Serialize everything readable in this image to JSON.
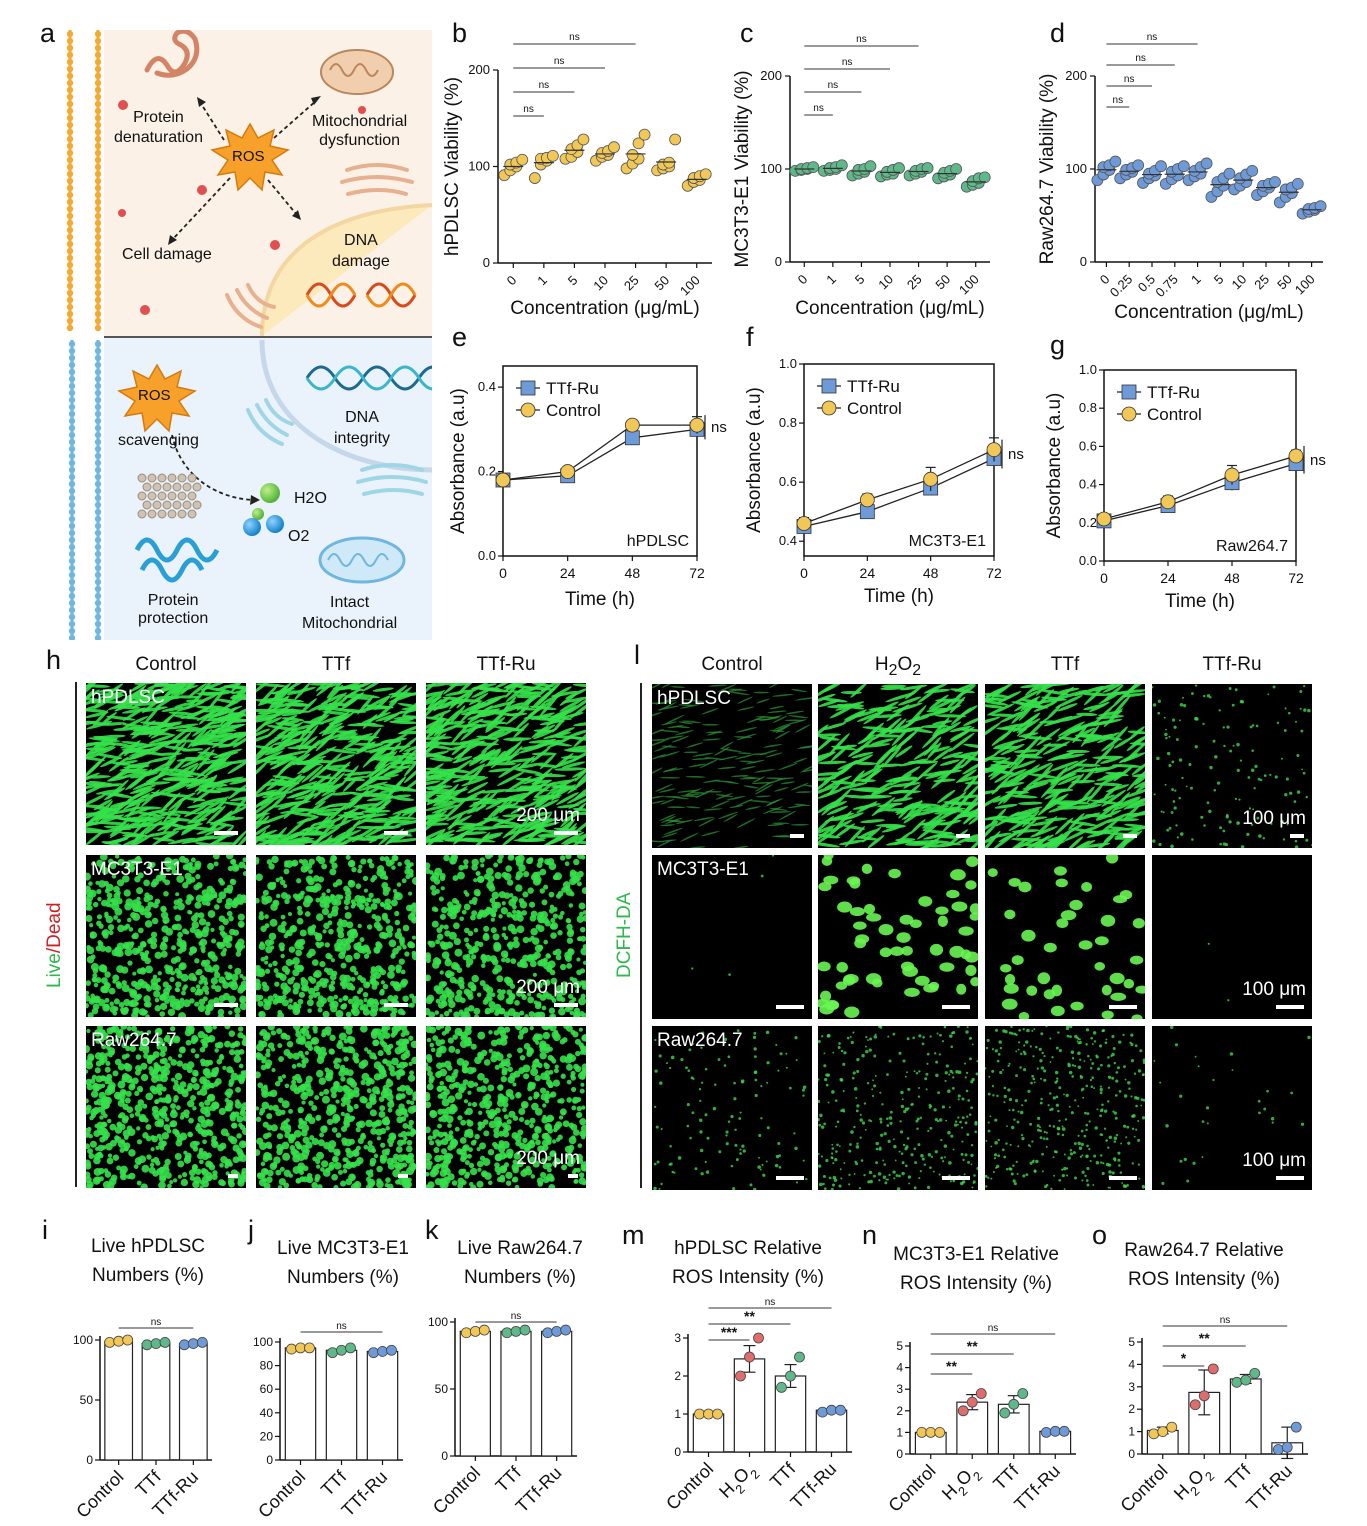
{
  "panel_letters": [
    "a",
    "b",
    "c",
    "d",
    "e",
    "f",
    "g",
    "h",
    "l",
    "i",
    "j",
    "k",
    "m",
    "n",
    "o"
  ],
  "schematic": {
    "top": {
      "ros": "ROS",
      "protein": "Protein\ndenaturation",
      "mito": "Mitochondrial\ndysfunction",
      "cell": "Cell damage",
      "dna": "DNA\ndamage"
    },
    "bottom": {
      "ros": "ROS",
      "scavenging": "scavenging",
      "h2o": "H2O",
      "o2": "O2",
      "dna": "DNA\nintegrity",
      "protein": "Protein\nprotection",
      "mito": "Intact\nMitochondrial"
    }
  },
  "chart_data": [
    {
      "id": "b",
      "type": "scatter",
      "xlabel": "Concentration (μg/mL)",
      "ylabel": "hPDLSC Viability (%)",
      "categories": [
        "0",
        "1",
        "5",
        "10",
        "25",
        "50",
        "100"
      ],
      "ylim": [
        0,
        200
      ],
      "yticks": [
        0,
        100,
        200
      ],
      "color": "#f1c858",
      "points": [
        [
          91,
          96,
          100,
          102,
          104,
          107
        ],
        [
          88,
          102,
          106,
          108,
          109,
          111
        ],
        [
          108,
          110,
          115,
          118,
          122,
          128
        ],
        [
          106,
          110,
          112,
          114,
          116,
          120
        ],
        [
          98,
          103,
          108,
          112,
          124,
          133
        ],
        [
          96,
          98,
          100,
          102,
          104,
          128
        ],
        [
          80,
          84,
          86,
          88,
          90,
          92
        ]
      ],
      "sig": [
        {
          "from": 0,
          "to": 1,
          "label": "ns"
        },
        {
          "from": 0,
          "to": 2,
          "label": "ns"
        },
        {
          "from": 0,
          "to": 3,
          "label": "ns"
        },
        {
          "from": 0,
          "to": 4,
          "label": "ns"
        }
      ]
    },
    {
      "id": "c",
      "type": "scatter",
      "xlabel": "Concentration (μg/mL)",
      "ylabel": "MC3T3-E1 Viability (%)",
      "categories": [
        "0",
        "1",
        "5",
        "10",
        "25",
        "50",
        "100"
      ],
      "ylim": [
        0,
        200
      ],
      "yticks": [
        0,
        100,
        200
      ],
      "color": "#5fb88a",
      "points": [
        [
          98,
          99,
          100,
          100,
          101,
          102
        ],
        [
          98,
          99,
          100,
          101,
          102,
          104
        ],
        [
          93,
          95,
          97,
          99,
          100,
          103
        ],
        [
          92,
          94,
          95,
          97,
          99,
          101
        ],
        [
          93,
          95,
          97,
          98,
          100,
          101
        ],
        [
          90,
          92,
          94,
          96,
          98,
          100
        ],
        [
          81,
          83,
          85,
          87,
          90,
          91
        ]
      ],
      "sig": [
        {
          "from": 0,
          "to": 1,
          "label": "ns"
        },
        {
          "from": 0,
          "to": 2,
          "label": "ns"
        },
        {
          "from": 0,
          "to": 3,
          "label": "ns"
        },
        {
          "from": 0,
          "to": 4,
          "label": "ns"
        }
      ]
    },
    {
      "id": "d",
      "type": "scatter",
      "xlabel": "Concentration (μg/mL)",
      "ylabel": "Raw264.7 Viability (%)",
      "categories": [
        "0",
        "0.25",
        "0.5",
        "0.75",
        "1",
        "5",
        "10",
        "25",
        "50",
        "100"
      ],
      "ylim": [
        0,
        200
      ],
      "yticks": [
        0,
        100,
        200
      ],
      "color": "#6e9ad8",
      "points": [
        [
          88,
          94,
          99,
          102,
          104,
          108
        ],
        [
          90,
          94,
          97,
          99,
          101,
          104
        ],
        [
          85,
          90,
          93,
          95,
          98,
          103
        ],
        [
          84,
          89,
          93,
          97,
          100,
          103
        ],
        [
          88,
          92,
          95,
          98,
          102,
          106
        ],
        [
          70,
          76,
          82,
          86,
          90,
          95
        ],
        [
          78,
          82,
          86,
          90,
          94,
          98
        ],
        [
          72,
          76,
          80,
          82,
          84,
          86
        ],
        [
          64,
          70,
          74,
          78,
          80,
          84
        ],
        [
          52,
          54,
          56,
          57,
          58,
          60
        ]
      ],
      "sig": [
        {
          "from": 0,
          "to": 1,
          "label": "ns"
        },
        {
          "from": 0,
          "to": 2,
          "label": "ns"
        },
        {
          "from": 0,
          "to": 3,
          "label": "ns"
        },
        {
          "from": 0,
          "to": 4,
          "label": "ns"
        }
      ]
    },
    {
      "id": "e",
      "type": "line",
      "xlabel": "Time (h)",
      "ylabel": "Absorbance (a.u)",
      "cell": "hPDLSC",
      "x": [
        0,
        24,
        48,
        72
      ],
      "xlim": [
        0,
        72
      ],
      "ylim": [
        0,
        0.45
      ],
      "yticks": [
        0.0,
        0.2,
        0.4
      ],
      "series": [
        {
          "name": "TTf-Ru",
          "values": [
            0.18,
            0.19,
            0.28,
            0.3
          ],
          "err": [
            0.01,
            0.01,
            0.01,
            0.02
          ]
        },
        {
          "name": "Control",
          "values": [
            0.18,
            0.2,
            0.31,
            0.31
          ],
          "err": [
            0.01,
            0.01,
            0.01,
            0.02
          ]
        }
      ],
      "sig": "ns"
    },
    {
      "id": "f",
      "type": "line",
      "xlabel": "Time (h)",
      "ylabel": "Absorbance (a.u)",
      "cell": "MC3T3-E1",
      "x": [
        0,
        24,
        48,
        72
      ],
      "xlim": [
        0,
        72
      ],
      "ylim": [
        0.35,
        1.0
      ],
      "yticks": [
        0.4,
        0.6,
        0.8,
        1.0
      ],
      "series": [
        {
          "name": "TTf-Ru",
          "values": [
            0.45,
            0.5,
            0.58,
            0.68
          ],
          "err": [
            0.02,
            0.02,
            0.02,
            0.03
          ]
        },
        {
          "name": "Control",
          "values": [
            0.46,
            0.54,
            0.61,
            0.71
          ],
          "err": [
            0.02,
            0.02,
            0.04,
            0.04
          ]
        }
      ],
      "sig": "ns"
    },
    {
      "id": "g",
      "type": "line",
      "xlabel": "Time (h)",
      "ylabel": "Absorbance (a.u)",
      "cell": "Raw264.7",
      "x": [
        0,
        24,
        48,
        72
      ],
      "xlim": [
        0,
        72
      ],
      "ylim": [
        0,
        1.0
      ],
      "yticks": [
        0.0,
        0.2,
        0.4,
        0.6,
        0.8,
        1.0
      ],
      "series": [
        {
          "name": "TTf-Ru",
          "values": [
            0.21,
            0.29,
            0.41,
            0.51
          ],
          "err": [
            0.02,
            0.03,
            0.04,
            0.03
          ]
        },
        {
          "name": "Control",
          "values": [
            0.22,
            0.31,
            0.45,
            0.55
          ],
          "err": [
            0.02,
            0.03,
            0.05,
            0.03
          ]
        }
      ],
      "sig": "ns"
    },
    {
      "id": "i",
      "type": "bar",
      "title": "Live hPDLSC\nNumbers (%)",
      "categories": [
        "Control",
        "TTf",
        "TTf-Ru"
      ],
      "values": [
        99,
        97,
        97
      ],
      "points": [
        [
          98,
          99,
          100
        ],
        [
          96,
          97,
          98
        ],
        [
          96,
          97,
          98
        ]
      ],
      "colors": [
        "#f1c858",
        "#5fb88a",
        "#6e9ad8"
      ],
      "ylim": [
        0,
        100
      ],
      "yticks": [
        0,
        50,
        100
      ],
      "sig": [
        {
          "from": 0,
          "to": 2,
          "label": "ns"
        }
      ]
    },
    {
      "id": "j",
      "type": "bar",
      "title": "Live MC3T3-E1\nNumbers (%)",
      "categories": [
        "Control",
        "TTf",
        "TTf-Ru"
      ],
      "values": [
        95,
        93,
        92
      ],
      "points": [
        [
          94,
          95,
          95
        ],
        [
          91,
          93,
          95
        ],
        [
          91,
          92,
          93
        ]
      ],
      "colors": [
        "#f1c858",
        "#5fb88a",
        "#6e9ad8"
      ],
      "ylim": [
        0,
        100
      ],
      "yticks": [
        0,
        20,
        40,
        60,
        80,
        100
      ],
      "sig": [
        {
          "from": 0,
          "to": 2,
          "label": "ns"
        }
      ]
    },
    {
      "id": "k",
      "type": "bar",
      "title": "Live Raw264.7\nNumbers (%)",
      "categories": [
        "Control",
        "TTf",
        "TTf-Ru"
      ],
      "values": [
        93,
        93,
        93
      ],
      "points": [
        [
          92,
          93,
          94
        ],
        [
          92,
          93,
          94
        ],
        [
          92,
          93,
          94
        ]
      ],
      "colors": [
        "#f1c858",
        "#5fb88a",
        "#6e9ad8"
      ],
      "ylim": [
        0,
        100
      ],
      "yticks": [
        0,
        50,
        100
      ],
      "sig": [
        {
          "from": 0,
          "to": 2,
          "label": "ns"
        }
      ]
    },
    {
      "id": "m",
      "type": "bar",
      "title": "hPDLSC  Relative\nROS Intensity (%)",
      "categories": [
        "Control",
        "H2O2",
        "TTf",
        "TTf-Ru"
      ],
      "values": [
        1.0,
        2.45,
        2.0,
        1.1
      ],
      "err": [
        0.0,
        0.35,
        0.3,
        0.0
      ],
      "points": [
        [
          1.0,
          1.0,
          1.0
        ],
        [
          2.0,
          2.5,
          3.0
        ],
        [
          1.7,
          2.0,
          2.5
        ],
        [
          1.05,
          1.1,
          1.1
        ]
      ],
      "colors": [
        "#f1c858",
        "#e06d6d",
        "#5fb88a",
        "#6e9ad8"
      ],
      "ylim": [
        0,
        3
      ],
      "yticks": [
        0,
        1,
        2,
        3
      ],
      "sig": [
        {
          "from": 0,
          "to": 1,
          "label": "***"
        },
        {
          "from": 0,
          "to": 2,
          "label": "**"
        },
        {
          "from": 0,
          "to": 3,
          "label": "ns"
        }
      ]
    },
    {
      "id": "n",
      "type": "bar",
      "title": "MC3T3-E1  Relative\nROS Intensity (%)",
      "categories": [
        "Control",
        "H2O2",
        "TTf",
        "TTf-Ru"
      ],
      "values": [
        1.0,
        2.4,
        2.3,
        1.05
      ],
      "err": [
        0.0,
        0.35,
        0.4,
        0.0
      ],
      "points": [
        [
          1.0,
          1.0,
          1.0
        ],
        [
          2.0,
          2.4,
          2.8
        ],
        [
          1.9,
          2.3,
          2.8
        ],
        [
          1.0,
          1.05,
          1.05
        ]
      ],
      "colors": [
        "#f1c858",
        "#e06d6d",
        "#5fb88a",
        "#6e9ad8"
      ],
      "ylim": [
        0,
        5
      ],
      "yticks": [
        0,
        1,
        2,
        3,
        4,
        5
      ],
      "sig": [
        {
          "from": 0,
          "to": 1,
          "label": "**"
        },
        {
          "from": 0,
          "to": 2,
          "label": "**"
        },
        {
          "from": 0,
          "to": 3,
          "label": "ns"
        }
      ]
    },
    {
      "id": "o",
      "type": "bar",
      "title": "Raw264.7  Relative\nROS Intensity (%)",
      "categories": [
        "Control",
        "H2O2",
        "TTf",
        "TTf-Ru"
      ],
      "values": [
        1.05,
        2.75,
        3.35,
        0.5
      ],
      "err": [
        0.15,
        1.0,
        0.2,
        0.7
      ],
      "points": [
        [
          0.9,
          1.0,
          1.2
        ],
        [
          2.2,
          2.6,
          3.8
        ],
        [
          3.2,
          3.3,
          3.6
        ],
        [
          0.2,
          0.3,
          1.2
        ]
      ],
      "colors": [
        "#f1c858",
        "#e06d6d",
        "#5fb88a",
        "#6e9ad8"
      ],
      "ylim": [
        0,
        5
      ],
      "yticks": [
        0,
        1,
        2,
        3,
        4,
        5
      ],
      "sig": [
        {
          "from": 0,
          "to": 1,
          "label": "*"
        },
        {
          "from": 0,
          "to": 2,
          "label": "**"
        },
        {
          "from": 0,
          "to": 3,
          "label": "ns"
        }
      ]
    }
  ],
  "panel_h": {
    "columns": [
      "Control",
      "TTf",
      "TTf-Ru"
    ],
    "rows": [
      "hPDLSC",
      "MC3T3-E1",
      "Raw264.7"
    ],
    "side_label_live": "Live",
    "side_label_sep": "/",
    "side_label_dead": "Dead",
    "scale": "200 μm"
  },
  "panel_l": {
    "columns": [
      "Control",
      "H2O2",
      "TTf",
      "TTf-Ru"
    ],
    "rows": [
      "hPDLSC",
      "MC3T3-E1",
      "Raw264.7"
    ],
    "side_label": "DCFH-DA",
    "scale": "100 μm"
  },
  "colors": {
    "yellow": "#f1c858",
    "green": "#5fb88a",
    "blue": "#6e9ad8",
    "red": "#e06d6d",
    "fluor": "#35e14a",
    "ros_star": "#f7a02a"
  }
}
